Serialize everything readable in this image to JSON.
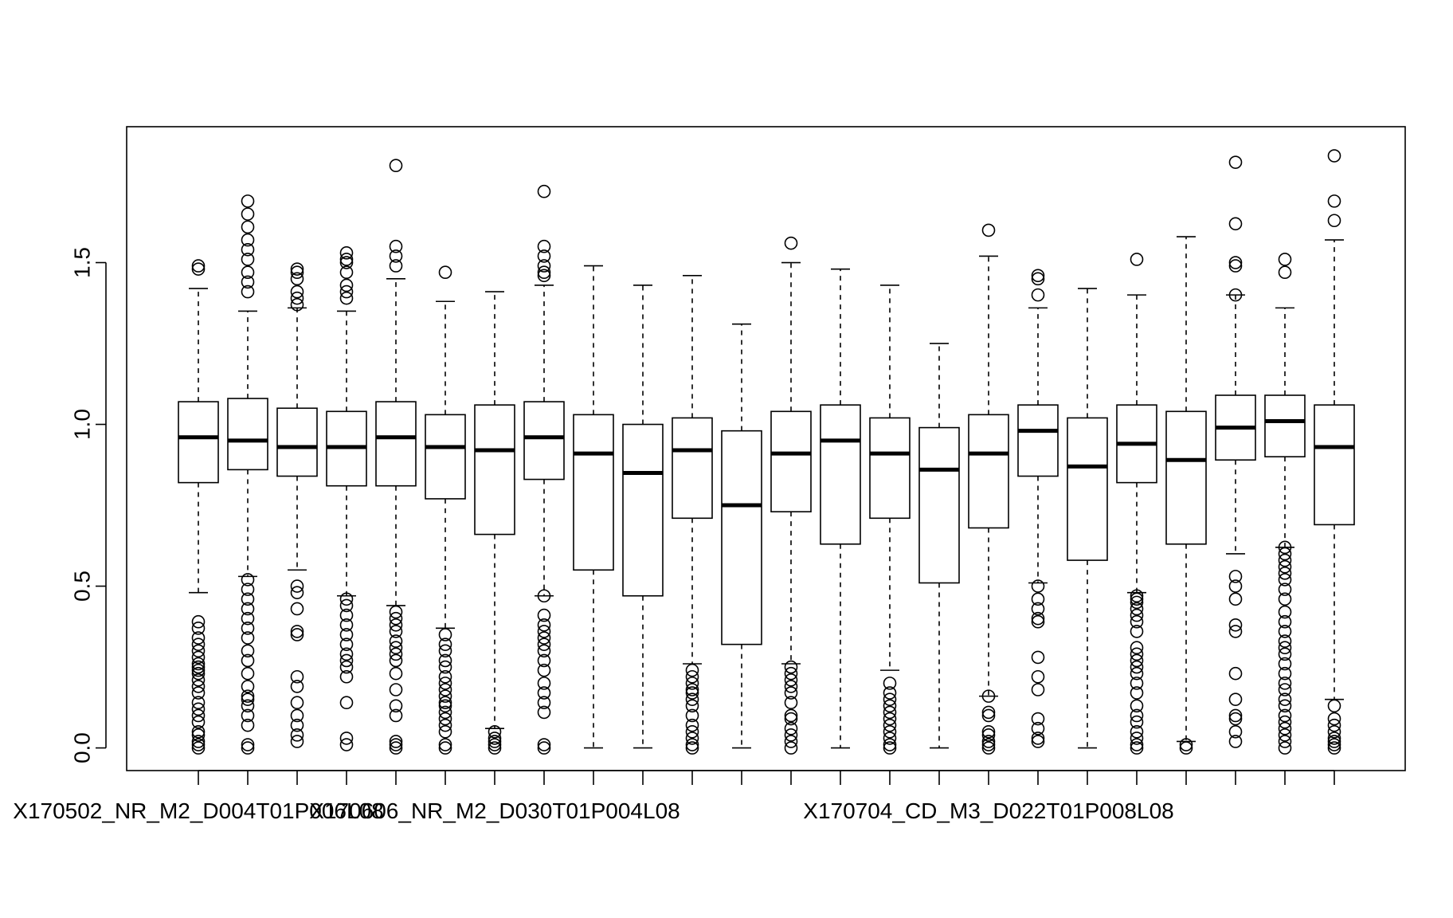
{
  "chart_data": {
    "type": "box",
    "title": "",
    "xlabel": "",
    "ylabel": "",
    "ylim": [
      -0.07,
      1.92
    ],
    "yticks": [
      0.0,
      0.5,
      1.0,
      1.5
    ],
    "ytick_labels": [
      "0.0",
      "0.5",
      "1.0",
      "1.5"
    ],
    "xtick_labels": [
      {
        "index": 0,
        "label": "X170502_NR_M2_D004T01P006L08"
      },
      {
        "index": 6,
        "label": "X170606_NR_M2_D030T01P004L08"
      },
      {
        "index": 16,
        "label": "X170704_CD_M3_D022T01P008L08"
      }
    ],
    "boxes": [
      {
        "whisker_low": 0.48,
        "q1": 0.82,
        "median": 0.96,
        "q3": 1.07,
        "whisker_high": 1.42,
        "outliers": [
          0.0,
          0.01,
          0.02,
          0.04,
          0.05,
          0.08,
          0.1,
          0.12,
          0.14,
          0.17,
          0.19,
          0.21,
          0.23,
          0.24,
          0.25,
          0.26,
          0.28,
          0.3,
          0.32,
          0.34,
          0.37,
          0.39,
          1.48,
          1.49
        ]
      },
      {
        "whisker_low": 0.53,
        "q1": 0.86,
        "median": 0.95,
        "q3": 1.08,
        "whisker_high": 1.35,
        "outliers": [
          0.0,
          0.01,
          0.07,
          0.1,
          0.13,
          0.15,
          0.16,
          0.19,
          0.23,
          0.27,
          0.3,
          0.34,
          0.37,
          0.4,
          0.43,
          0.46,
          0.49,
          0.52,
          1.41,
          1.44,
          1.47,
          1.51,
          1.54,
          1.57,
          1.61,
          1.65,
          1.69
        ]
      },
      {
        "whisker_low": 0.55,
        "q1": 0.84,
        "median": 0.93,
        "q3": 1.05,
        "whisker_high": 1.36,
        "outliers": [
          0.02,
          0.04,
          0.07,
          0.1,
          0.14,
          0.19,
          0.22,
          0.35,
          0.36,
          0.43,
          0.48,
          0.5,
          1.37,
          1.39,
          1.41,
          1.45,
          1.47,
          1.48
        ]
      },
      {
        "whisker_low": 0.47,
        "q1": 0.81,
        "median": 0.93,
        "q3": 1.04,
        "whisker_high": 1.35,
        "outliers": [
          0.01,
          0.03,
          0.14,
          0.22,
          0.25,
          0.27,
          0.29,
          0.32,
          0.35,
          0.38,
          0.41,
          0.44,
          0.46,
          1.39,
          1.41,
          1.43,
          1.47,
          1.5,
          1.51,
          1.53
        ]
      },
      {
        "whisker_low": 0.44,
        "q1": 0.81,
        "median": 0.96,
        "q3": 1.07,
        "whisker_high": 1.45,
        "outliers": [
          0.0,
          0.01,
          0.02,
          0.1,
          0.13,
          0.18,
          0.23,
          0.27,
          0.29,
          0.31,
          0.33,
          0.36,
          0.38,
          0.4,
          0.42,
          1.49,
          1.52,
          1.55,
          1.8
        ]
      },
      {
        "whisker_low": 0.37,
        "q1": 0.77,
        "median": 0.93,
        "q3": 1.03,
        "whisker_high": 1.38,
        "outliers": [
          0.0,
          0.01,
          0.05,
          0.07,
          0.09,
          0.11,
          0.13,
          0.14,
          0.16,
          0.18,
          0.2,
          0.22,
          0.25,
          0.27,
          0.3,
          0.32,
          0.35,
          1.47
        ]
      },
      {
        "whisker_low": 0.06,
        "q1": 0.66,
        "median": 0.92,
        "q3": 1.06,
        "whisker_high": 1.41,
        "outliers": [
          0.0,
          0.01,
          0.02,
          0.03,
          0.05
        ]
      },
      {
        "whisker_low": 0.47,
        "q1": 0.83,
        "median": 0.96,
        "q3": 1.07,
        "whisker_high": 1.43,
        "outliers": [
          0.0,
          0.01,
          0.11,
          0.14,
          0.17,
          0.2,
          0.24,
          0.27,
          0.3,
          0.32,
          0.34,
          0.36,
          0.38,
          0.41,
          0.47,
          1.46,
          1.47,
          1.49,
          1.52,
          1.55,
          1.72
        ]
      },
      {
        "whisker_low": 0.0,
        "q1": 0.55,
        "median": 0.91,
        "q3": 1.03,
        "whisker_high": 1.49,
        "outliers": []
      },
      {
        "whisker_low": 0.0,
        "q1": 0.47,
        "median": 0.85,
        "q3": 1.0,
        "whisker_high": 1.43,
        "outliers": []
      },
      {
        "whisker_low": 0.26,
        "q1": 0.71,
        "median": 0.92,
        "q3": 1.02,
        "whisker_high": 1.46,
        "outliers": [
          0.0,
          0.01,
          0.03,
          0.05,
          0.07,
          0.1,
          0.13,
          0.15,
          0.17,
          0.18,
          0.2,
          0.22,
          0.24
        ]
      },
      {
        "whisker_low": 0.0,
        "q1": 0.32,
        "median": 0.75,
        "q3": 0.98,
        "whisker_high": 1.31,
        "outliers": []
      },
      {
        "whisker_low": 0.26,
        "q1": 0.73,
        "median": 0.91,
        "q3": 1.04,
        "whisker_high": 1.5,
        "outliers": [
          0.0,
          0.02,
          0.04,
          0.06,
          0.09,
          0.1,
          0.14,
          0.17,
          0.19,
          0.21,
          0.23,
          0.25,
          1.56
        ]
      },
      {
        "whisker_low": 0.0,
        "q1": 0.63,
        "median": 0.95,
        "q3": 1.06,
        "whisker_high": 1.48,
        "outliers": []
      },
      {
        "whisker_low": 0.24,
        "q1": 0.71,
        "median": 0.91,
        "q3": 1.02,
        "whisker_high": 1.43,
        "outliers": [
          0.0,
          0.01,
          0.03,
          0.05,
          0.07,
          0.09,
          0.11,
          0.13,
          0.15,
          0.17,
          0.2
        ]
      },
      {
        "whisker_low": 0.0,
        "q1": 0.51,
        "median": 0.86,
        "q3": 0.99,
        "whisker_high": 1.25,
        "outliers": []
      },
      {
        "whisker_low": 0.16,
        "q1": 0.68,
        "median": 0.91,
        "q3": 1.03,
        "whisker_high": 1.52,
        "outliers": [
          0.0,
          0.01,
          0.02,
          0.04,
          0.05,
          0.1,
          0.11,
          0.16,
          1.6
        ]
      },
      {
        "whisker_low": 0.51,
        "q1": 0.84,
        "median": 0.98,
        "q3": 1.06,
        "whisker_high": 1.36,
        "outliers": [
          0.02,
          0.03,
          0.06,
          0.09,
          0.18,
          0.22,
          0.28,
          0.39,
          0.4,
          0.43,
          0.46,
          0.5,
          1.4,
          1.45,
          1.46
        ]
      },
      {
        "whisker_low": 0.0,
        "q1": 0.58,
        "median": 0.87,
        "q3": 1.02,
        "whisker_high": 1.42,
        "outliers": []
      },
      {
        "whisker_low": 0.48,
        "q1": 0.82,
        "median": 0.94,
        "q3": 1.06,
        "whisker_high": 1.4,
        "outliers": [
          0.0,
          0.01,
          0.03,
          0.05,
          0.08,
          0.1,
          0.13,
          0.17,
          0.2,
          0.23,
          0.25,
          0.27,
          0.29,
          0.31,
          0.36,
          0.39,
          0.41,
          0.43,
          0.45,
          0.46,
          0.47,
          1.51
        ]
      },
      {
        "whisker_low": 0.02,
        "q1": 0.63,
        "median": 0.89,
        "q3": 1.04,
        "whisker_high": 1.58,
        "outliers": [
          0.0,
          0.01
        ]
      },
      {
        "whisker_low": 0.6,
        "q1": 0.89,
        "median": 0.99,
        "q3": 1.09,
        "whisker_high": 1.4,
        "outliers": [
          0.02,
          0.05,
          0.09,
          0.1,
          0.15,
          0.23,
          0.36,
          0.38,
          0.46,
          0.5,
          0.53,
          1.4,
          1.49,
          1.5,
          1.62,
          1.81
        ]
      },
      {
        "whisker_low": 0.62,
        "q1": 0.9,
        "median": 1.01,
        "q3": 1.09,
        "whisker_high": 1.36,
        "outliers": [
          0.0,
          0.02,
          0.04,
          0.06,
          0.08,
          0.1,
          0.13,
          0.15,
          0.18,
          0.2,
          0.23,
          0.26,
          0.29,
          0.31,
          0.33,
          0.36,
          0.39,
          0.42,
          0.46,
          0.49,
          0.52,
          0.54,
          0.56,
          0.58,
          0.6,
          0.62,
          1.47,
          1.51
        ]
      },
      {
        "whisker_low": 0.15,
        "q1": 0.69,
        "median": 0.93,
        "q3": 1.06,
        "whisker_high": 1.57,
        "outliers": [
          0.0,
          0.01,
          0.02,
          0.03,
          0.05,
          0.07,
          0.09,
          0.13,
          1.63,
          1.69,
          1.83
        ]
      }
    ]
  }
}
